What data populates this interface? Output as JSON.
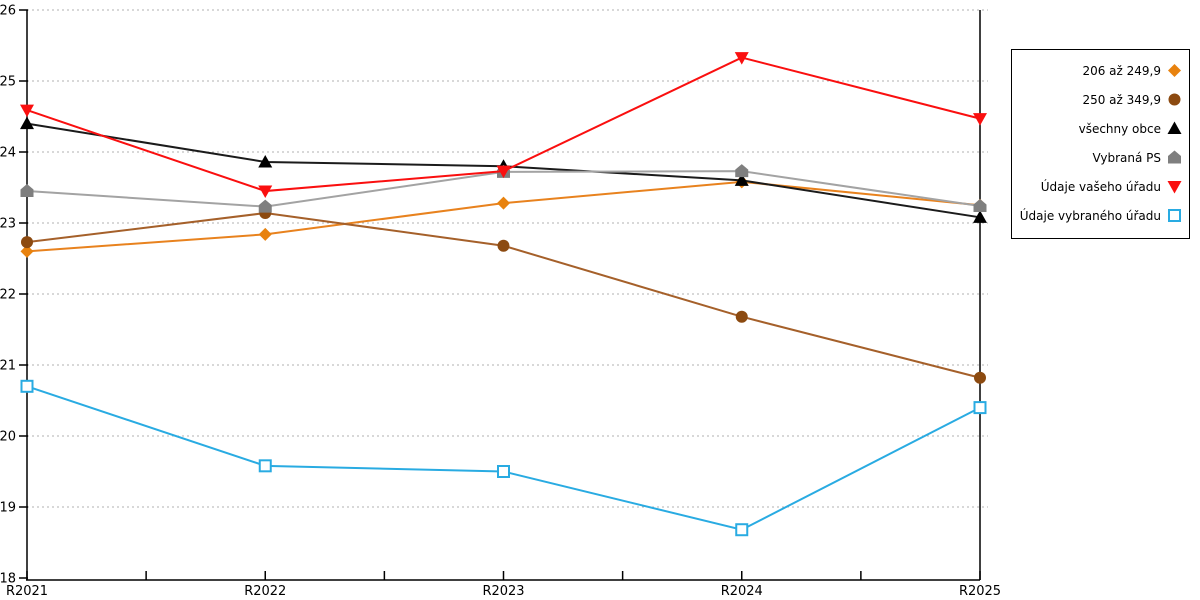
{
  "chart_data": {
    "type": "line",
    "title": "",
    "xlabel": "",
    "ylabel": "",
    "x_categories": [
      "R2021",
      "R2022",
      "R2023",
      "R2024",
      "R2025"
    ],
    "ylim": [
      18,
      26
    ],
    "ytick_step": 1,
    "grid": "horizontal-dotted",
    "grid_color": "#b0b0b0",
    "axis_color": "#000000",
    "legend_position": "right",
    "series": [
      {
        "name": "206 až 249,9",
        "marker": "diamond",
        "marker_color": "#e8820e",
        "line_color": "#e8821e",
        "values": [
          22.6,
          22.84,
          23.28,
          23.58,
          23.25
        ]
      },
      {
        "name": "250 až 349,9",
        "marker": "circle",
        "marker_color": "#8c4a10",
        "line_color": "#a5602a",
        "values": [
          22.73,
          23.14,
          22.68,
          21.68,
          20.82
        ]
      },
      {
        "name": "všechny obce",
        "marker": "triangle-up",
        "marker_color": "#000000",
        "line_color": "#1b1b1b",
        "values": [
          24.4,
          23.86,
          23.8,
          23.6,
          23.08
        ]
      },
      {
        "name": "Vybraná PS",
        "marker": "pentagon",
        "marker_color": "#7f7f7f",
        "line_color": "#a3a3a3",
        "values": [
          23.45,
          23.23,
          23.72,
          23.73,
          23.24
        ]
      },
      {
        "name": "Údaje vašeho úřadu",
        "marker": "triangle-down",
        "marker_color": "#fa0f0f",
        "line_color": "#fa0f0f",
        "values": [
          24.59,
          23.45,
          23.73,
          25.33,
          24.47
        ]
      },
      {
        "name": "Údaje vybraného úřadu",
        "marker": "square-open",
        "marker_color": "#29abe2",
        "line_color": "#29abe2",
        "values": [
          20.7,
          19.58,
          19.5,
          18.68,
          20.4
        ]
      }
    ]
  }
}
